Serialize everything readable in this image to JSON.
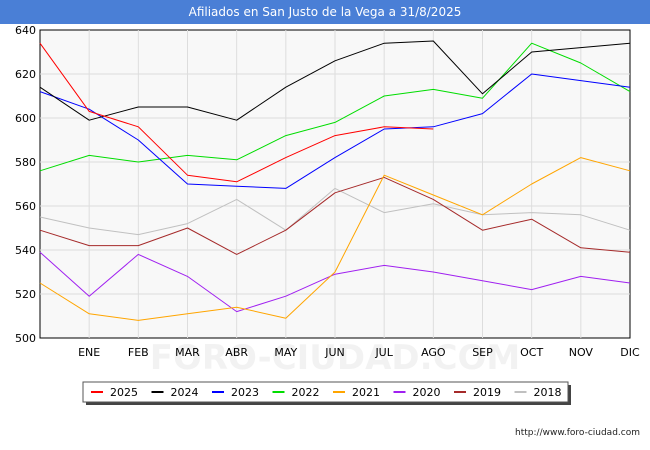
{
  "title": "Afiliados en San Justo de la Vega a 31/8/2025",
  "credit": "http://www.foro-ciudad.com",
  "watermark": "FORO-CIUDAD.COM",
  "chart_data": {
    "type": "line",
    "categories": [
      "",
      "ENE",
      "FEB",
      "MAR",
      "ABR",
      "MAY",
      "JUN",
      "JUL",
      "AGO",
      "SEP",
      "OCT",
      "NOV",
      "DIC"
    ],
    "ylim": [
      500,
      640
    ],
    "yticks": [
      500,
      520,
      540,
      560,
      580,
      600,
      620,
      640
    ],
    "grid": true,
    "legend_position": "bottom",
    "series": [
      {
        "name": "2025",
        "color": "#ff0000",
        "values": [
          634,
          603,
          596,
          574,
          571,
          582,
          592,
          596,
          595,
          null,
          null,
          null,
          null
        ]
      },
      {
        "name": "2024",
        "color": "#000000",
        "values": [
          614,
          599,
          605,
          605,
          599,
          614,
          626,
          634,
          635,
          611,
          630,
          632,
          634
        ]
      },
      {
        "name": "2023",
        "color": "#0000ff",
        "values": [
          612,
          604,
          590,
          570,
          569,
          568,
          582,
          595,
          596,
          602,
          620,
          617,
          614
        ]
      },
      {
        "name": "2022",
        "color": "#00dd00",
        "values": [
          576,
          583,
          580,
          583,
          581,
          592,
          598,
          610,
          613,
          609,
          634,
          625,
          612
        ]
      },
      {
        "name": "2021",
        "color": "#ffa500",
        "values": [
          525,
          511,
          508,
          511,
          514,
          509,
          530,
          574,
          565,
          556,
          570,
          582,
          576
        ]
      },
      {
        "name": "2020",
        "color": "#a020f0",
        "values": [
          539,
          519,
          538,
          528,
          512,
          519,
          529,
          533,
          530,
          526,
          522,
          528,
          525
        ]
      },
      {
        "name": "2019",
        "color": "#a52a2a",
        "values": [
          549,
          542,
          542,
          550,
          538,
          549,
          566,
          573,
          563,
          549,
          554,
          541,
          539
        ]
      },
      {
        "name": "2018",
        "color": "#c0c0c0",
        "values": [
          555,
          550,
          547,
          552,
          563,
          549,
          568,
          557,
          561,
          556,
          557,
          556,
          549
        ]
      }
    ]
  }
}
